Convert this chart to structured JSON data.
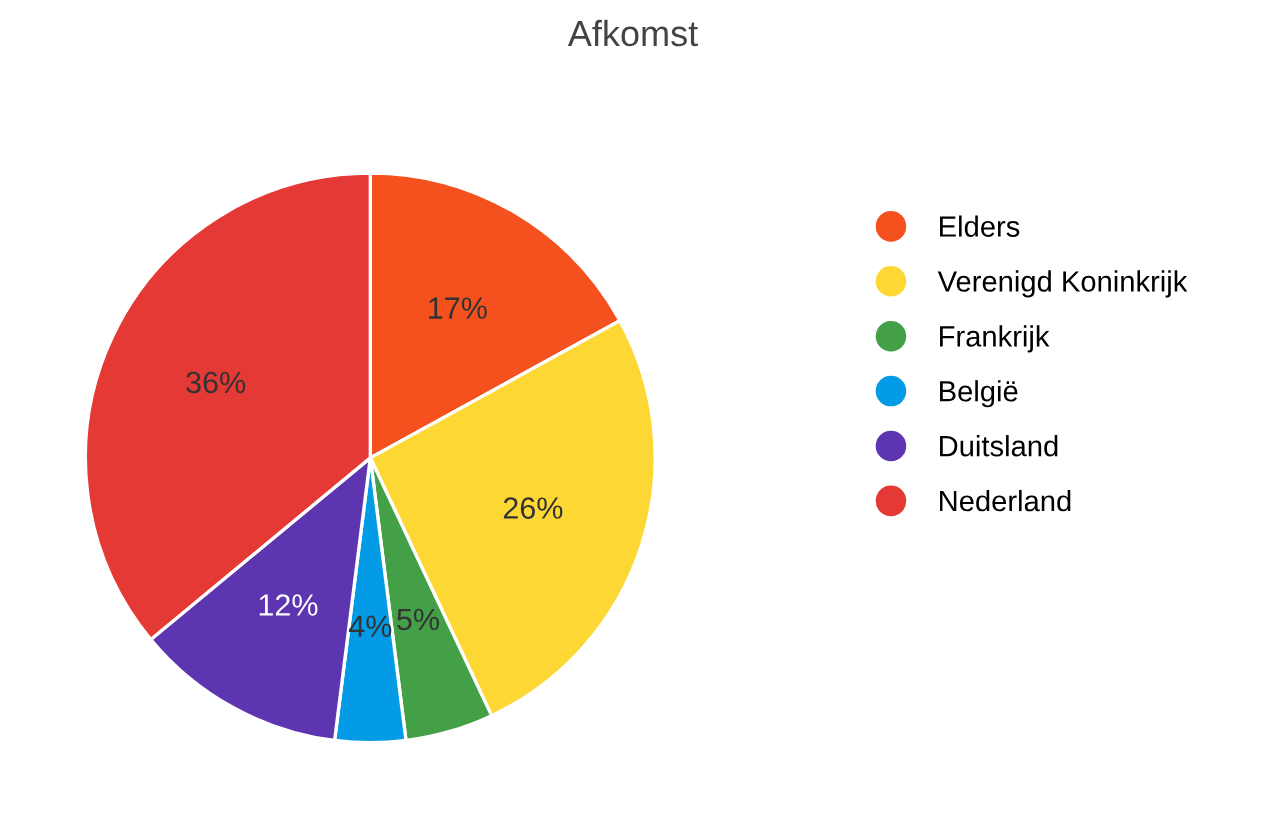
{
  "chart_data": {
    "type": "pie",
    "title": "Afkomst",
    "categories": [
      "Elders",
      "Verenigd Koninkrijk",
      "Frankrijk",
      "België",
      "Duitsland",
      "Nederland"
    ],
    "values": [
      17,
      26,
      5,
      4,
      12,
      36
    ],
    "colors": [
      "#f4511e",
      "#fdd835",
      "#43a047",
      "#039be5",
      "#5e35b1",
      "#e53935"
    ],
    "value_labels": [
      "17%",
      "26%",
      "5%",
      "4%",
      "12%",
      "36%"
    ],
    "legend": "right"
  }
}
